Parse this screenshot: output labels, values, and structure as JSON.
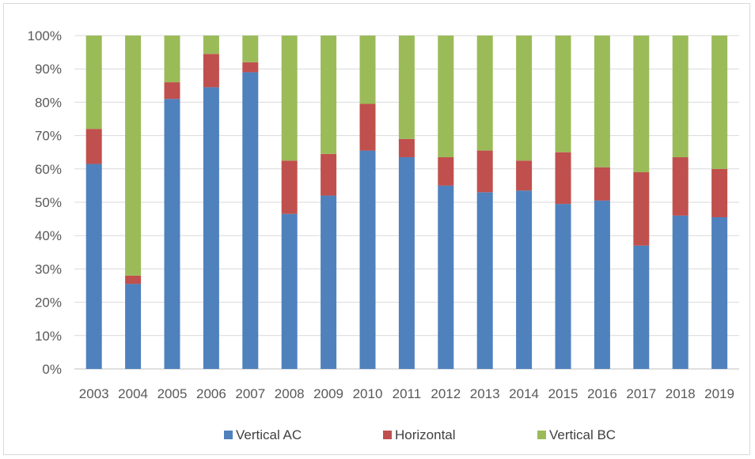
{
  "chart_data": {
    "type": "bar",
    "stacked": "percent",
    "categories": [
      "2003",
      "2004",
      "2005",
      "2006",
      "2007",
      "2008",
      "2009",
      "2010",
      "2011",
      "2012",
      "2013",
      "2014",
      "2015",
      "2016",
      "2017",
      "2018",
      "2019"
    ],
    "series": [
      {
        "name": "Vertical AC",
        "color": "#4f81bd",
        "values": [
          61.5,
          25.5,
          81.0,
          84.5,
          89.0,
          46.5,
          52.0,
          65.5,
          63.5,
          55.0,
          53.0,
          53.5,
          49.5,
          50.5,
          37.0,
          46.0,
          45.5
        ]
      },
      {
        "name": "Horizontal",
        "color": "#c0504d",
        "values": [
          10.5,
          2.5,
          5.0,
          10.0,
          3.0,
          16.0,
          12.5,
          14.0,
          5.5,
          8.5,
          12.5,
          9.0,
          15.5,
          10.0,
          22.0,
          17.5,
          14.5
        ]
      },
      {
        "name": "Vertical BC",
        "color": "#9bbb59",
        "values": [
          28.0,
          72.0,
          14.0,
          5.5,
          8.0,
          37.5,
          35.5,
          20.5,
          31.0,
          36.5,
          34.5,
          37.5,
          35.0,
          39.5,
          41.0,
          36.5,
          40.0
        ]
      }
    ],
    "y_ticks": [
      "0%",
      "10%",
      "20%",
      "30%",
      "40%",
      "50%",
      "60%",
      "70%",
      "80%",
      "90%",
      "100%"
    ],
    "ylim": [
      0,
      100
    ],
    "grid": true,
    "legend_position": "bottom",
    "title": "",
    "xlabel": "",
    "ylabel": ""
  }
}
